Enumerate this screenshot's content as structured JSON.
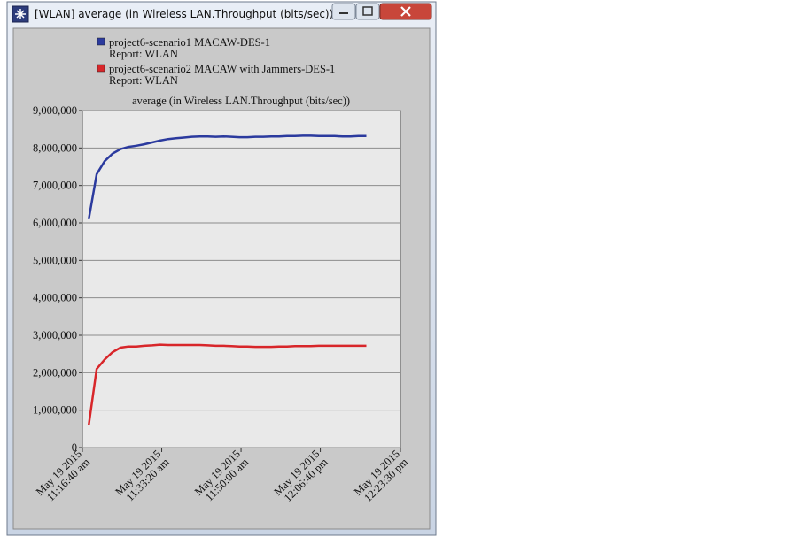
{
  "window": {
    "title": "[WLAN] average (in Wireless LAN.Throughput (bits/sec))"
  },
  "chart_data": {
    "type": "line",
    "title": "average (in Wireless LAN.Throughput (bits/sec))",
    "x": [
      "2015-05-19 11:18:00",
      "2015-05-19 11:19:40",
      "2015-05-19 11:21:20",
      "2015-05-19 11:23:00",
      "2015-05-19 11:24:40",
      "2015-05-19 11:26:20",
      "2015-05-19 11:28:00",
      "2015-05-19 11:29:40",
      "2015-05-19 11:31:20",
      "2015-05-19 11:33:00",
      "2015-05-19 11:34:40",
      "2015-05-19 11:36:20",
      "2015-05-19 11:38:00",
      "2015-05-19 11:39:40",
      "2015-05-19 11:41:20",
      "2015-05-19 11:43:00",
      "2015-05-19 11:44:40",
      "2015-05-19 11:46:20",
      "2015-05-19 11:48:00",
      "2015-05-19 11:49:40",
      "2015-05-19 11:51:20",
      "2015-05-19 11:53:00",
      "2015-05-19 11:54:40",
      "2015-05-19 11:56:20",
      "2015-05-19 11:58:00",
      "2015-05-19 11:59:40",
      "2015-05-19 12:01:20",
      "2015-05-19 12:03:00",
      "2015-05-19 12:04:40",
      "2015-05-19 12:06:20",
      "2015-05-19 12:08:00",
      "2015-05-19 12:09:40",
      "2015-05-19 12:11:20",
      "2015-05-19 12:13:00",
      "2015-05-19 12:14:40",
      "2015-05-19 12:16:20"
    ],
    "series": [
      {
        "name": "project6-scenario1 MACAW-DES-1",
        "report": "Report: WLAN",
        "color": "#2b3a9e",
        "values": [
          6100000,
          7300000,
          7650000,
          7850000,
          7970000,
          8030000,
          8060000,
          8100000,
          8150000,
          8200000,
          8240000,
          8260000,
          8280000,
          8300000,
          8310000,
          8310000,
          8300000,
          8310000,
          8300000,
          8290000,
          8290000,
          8300000,
          8300000,
          8310000,
          8310000,
          8320000,
          8320000,
          8330000,
          8330000,
          8320000,
          8320000,
          8320000,
          8310000,
          8310000,
          8320000,
          8320000
        ]
      },
      {
        "name": "project6-scenario2 MACAW with Jammers-DES-1",
        "report": "Report: WLAN",
        "color": "#d8262a",
        "values": [
          600000,
          2100000,
          2350000,
          2550000,
          2670000,
          2700000,
          2700000,
          2720000,
          2730000,
          2750000,
          2740000,
          2740000,
          2740000,
          2740000,
          2740000,
          2730000,
          2720000,
          2720000,
          2710000,
          2700000,
          2700000,
          2690000,
          2690000,
          2690000,
          2700000,
          2700000,
          2710000,
          2710000,
          2710000,
          2720000,
          2720000,
          2720000,
          2720000,
          2720000,
          2720000,
          2720000
        ]
      }
    ],
    "xlim": [
      "2015-05-19 11:16:40",
      "2015-05-19 12:23:30"
    ],
    "xticks": [
      {
        "value": "2015-05-19 11:16:40",
        "label": "May 19 2015\n11:16:40 am"
      },
      {
        "value": "2015-05-19 11:33:20",
        "label": "May 19 2015\n11:33:20 am"
      },
      {
        "value": "2015-05-19 11:50:00",
        "label": "May 19 2015\n11:50:00 am"
      },
      {
        "value": "2015-05-19 12:06:40",
        "label": "May 19 2015\n12:06:40 pm"
      },
      {
        "value": "2015-05-19 12:23:30",
        "label": "May 19 2015\n12:23:30 pm"
      }
    ],
    "ylim": [
      0,
      9000000
    ],
    "yticks": [
      0,
      {
        "value": 1000000,
        "label": "1,000,000"
      },
      {
        "value": 2000000,
        "label": "2,000,000"
      },
      {
        "value": 3000000,
        "label": "3,000,000"
      },
      {
        "value": 4000000,
        "label": "4,000,000"
      },
      {
        "value": 5000000,
        "label": "5,000,000"
      },
      {
        "value": 6000000,
        "label": "6,000,000"
      },
      {
        "value": 7000000,
        "label": "7,000,000"
      },
      {
        "value": 8000000,
        "label": "8,000,000"
      },
      {
        "value": 9000000,
        "label": "9,000,000"
      }
    ],
    "grid": true
  }
}
